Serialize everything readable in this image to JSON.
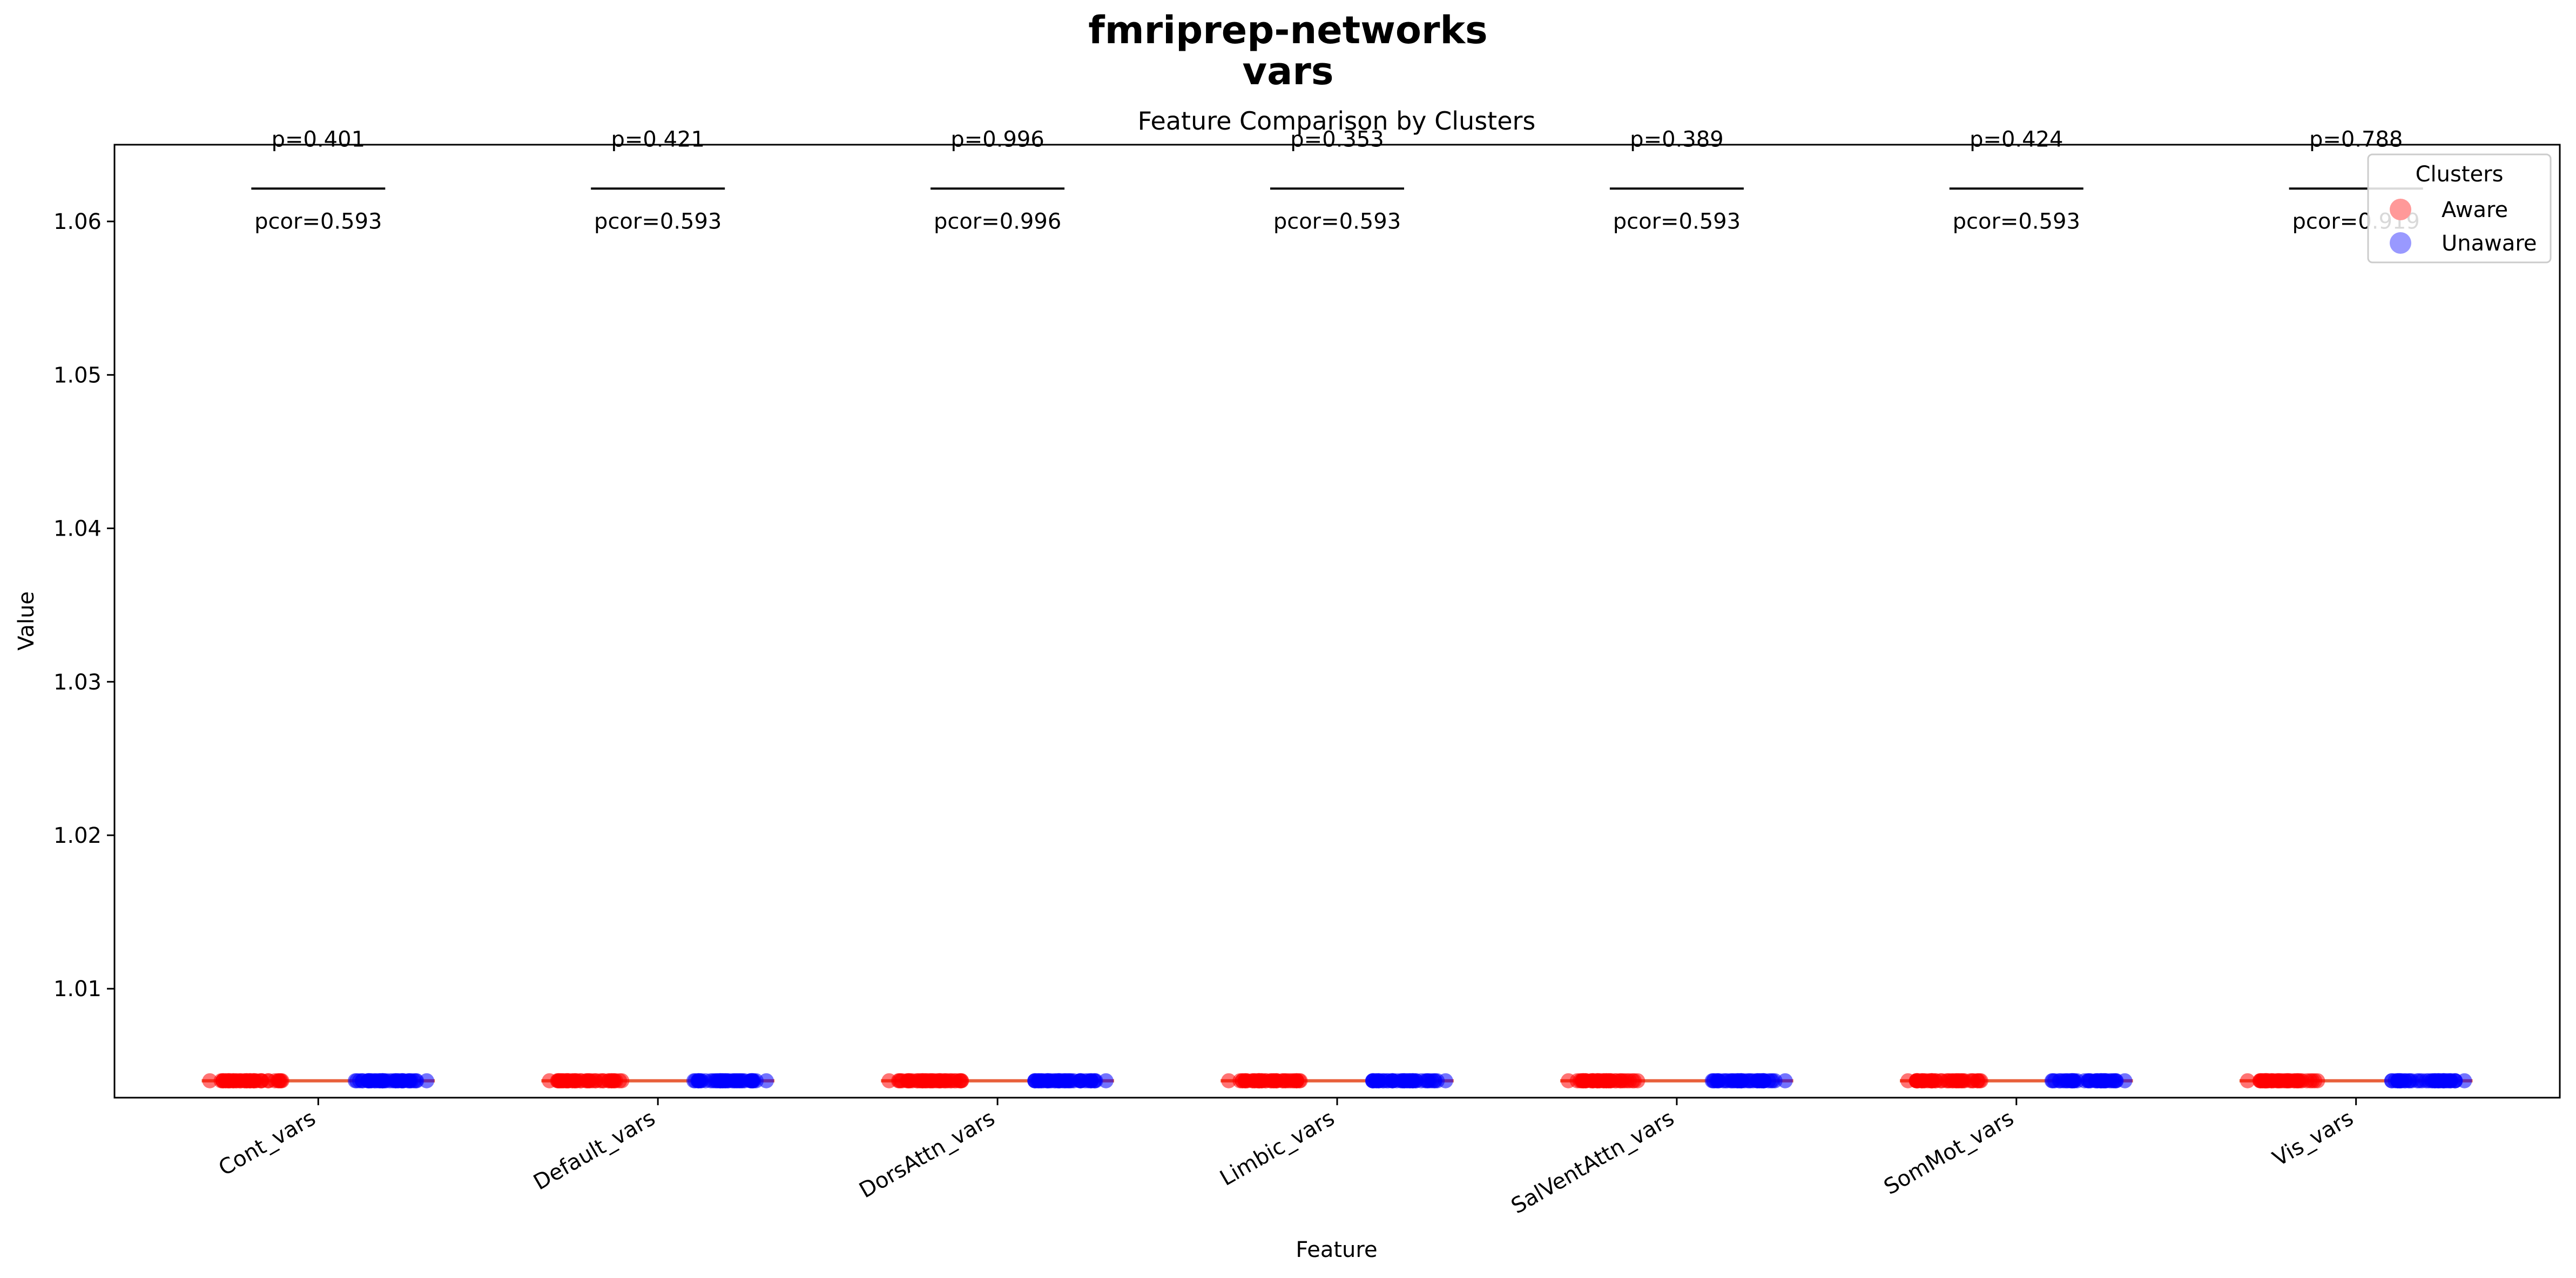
{
  "figure": {
    "suptitle_line1": "fmriprep-networks",
    "suptitle_line2": "vars"
  },
  "chart_data": {
    "type": "scatter",
    "title": "Feature Comparison by Clusters",
    "xlabel": "Feature",
    "ylabel": "Value",
    "ylim": [
      1.0029,
      1.065
    ],
    "yticks": [
      1.01,
      1.02,
      1.03,
      1.04,
      1.05,
      1.06
    ],
    "ytick_labels": [
      "1.01",
      "1.02",
      "1.03",
      "1.04",
      "1.05",
      "1.06"
    ],
    "grid": false,
    "categories": [
      "Cont_vars",
      "Default_vars",
      "DorsAttn_vars",
      "Limbic_vars",
      "SalVentAttn_vars",
      "SomMot_vars",
      "Vis_vars"
    ],
    "series": [
      {
        "name": "Aware",
        "color": "#ff0000",
        "legend_color": "#ff9999",
        "values": [
          1.004,
          1.004,
          1.004,
          1.004,
          1.004,
          1.004,
          1.004
        ]
      },
      {
        "name": "Unaware",
        "color": "#0000ff",
        "legend_color": "#9999ff",
        "values": [
          1.004,
          1.004,
          1.004,
          1.004,
          1.004,
          1.004,
          1.004
        ]
      }
    ],
    "legend": {
      "title": "Clusters",
      "placement": "top-right"
    },
    "bracket_y": 1.062,
    "annotations": [
      {
        "p": "p=0.401",
        "pcor": "pcor=0.593"
      },
      {
        "p": "p=0.421",
        "pcor": "pcor=0.593"
      },
      {
        "p": "p=0.996",
        "pcor": "pcor=0.996"
      },
      {
        "p": "p=0.353",
        "pcor": "pcor=0.593"
      },
      {
        "p": "p=0.389",
        "pcor": "pcor=0.593"
      },
      {
        "p": "p=0.424",
        "pcor": "pcor=0.593"
      },
      {
        "p": "p=0.788",
        "pcor": "pcor=0.919"
      }
    ],
    "median_line_color": "#e8603c"
  }
}
